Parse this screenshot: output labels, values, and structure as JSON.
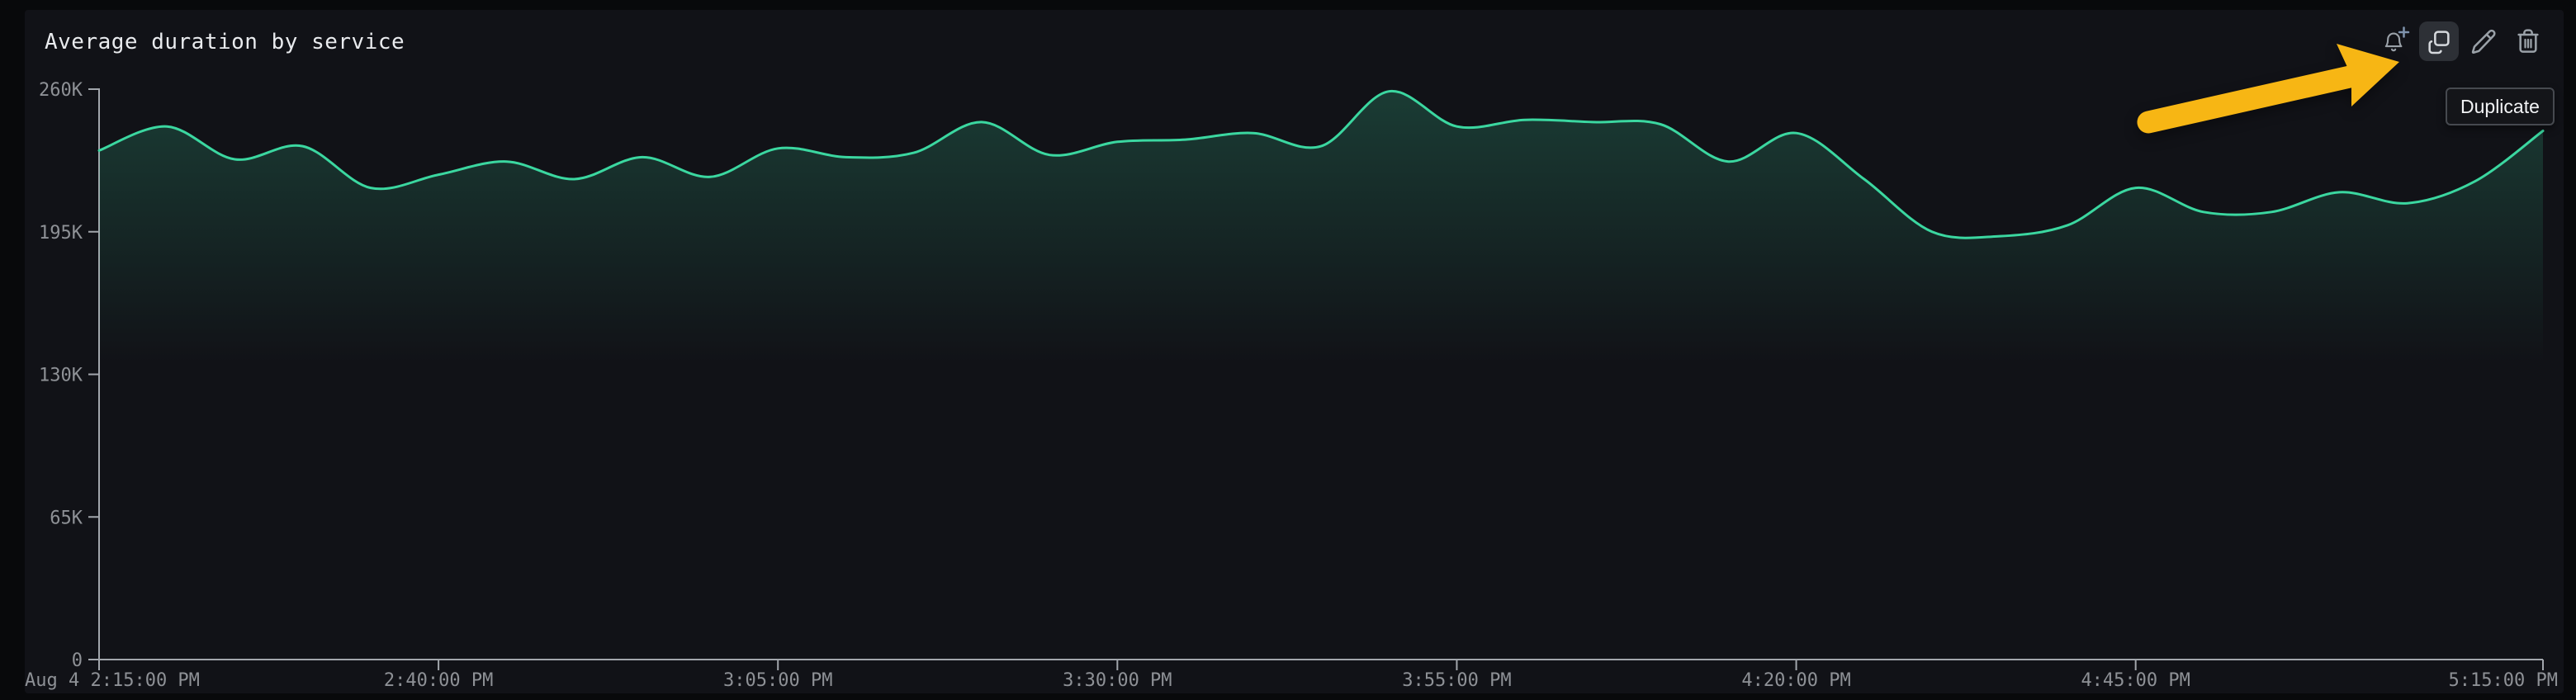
{
  "panel": {
    "title": "Average duration by service"
  },
  "toolbar": {
    "tooltip": "Duplicate",
    "buttons": [
      {
        "id": "alert",
        "icon": "bell-plus-icon"
      },
      {
        "id": "duplicate",
        "icon": "duplicate-icon",
        "state": "hovered"
      },
      {
        "id": "edit",
        "icon": "pencil-icon"
      },
      {
        "id": "delete",
        "icon": "trash-icon"
      }
    ]
  },
  "annotation": {
    "shape": "arrow",
    "color": "#f7b614",
    "points_to": "duplicate-button"
  },
  "colors": {
    "background": "#08090b",
    "panel": "#111217",
    "line": "#3bd7a0",
    "axis": "#a2a6ac",
    "tick_label": "#8e9196"
  },
  "chart_data": {
    "type": "line",
    "title": "Average duration by service",
    "xlabel": "",
    "ylabel": "",
    "grid": false,
    "legend": false,
    "ylim": [
      0,
      260000
    ],
    "yticks": [
      {
        "label": "0",
        "value": 0
      },
      {
        "label": "65K",
        "value": 65000
      },
      {
        "label": "130K",
        "value": 130000
      },
      {
        "label": "195K",
        "value": 195000
      },
      {
        "label": "260K",
        "value": 260000
      }
    ],
    "span_minutes": 180,
    "sample_interval_minutes": 5,
    "xticks": [
      {
        "label": "Aug 4 2:15:00 PM",
        "minutes": 0,
        "align": "start"
      },
      {
        "label": "2:40:00 PM",
        "minutes": 25,
        "align": "middle"
      },
      {
        "label": "3:05:00 PM",
        "minutes": 50,
        "align": "middle"
      },
      {
        "label": "3:30:00 PM",
        "minutes": 75,
        "align": "middle"
      },
      {
        "label": "3:55:00 PM",
        "minutes": 100,
        "align": "middle"
      },
      {
        "label": "4:20:00 PM",
        "minutes": 125,
        "align": "middle"
      },
      {
        "label": "4:45:00 PM",
        "minutes": 150,
        "align": "middle"
      },
      {
        "label": "5:15:00 PM",
        "minutes": 180,
        "align": "end"
      }
    ],
    "series": [
      {
        "name": "Average duration",
        "color": "#3bd7a0",
        "start_time": "Aug 4 2:15:00 PM",
        "values": [
          232000,
          243000,
          228000,
          234000,
          215000,
          221000,
          227000,
          219000,
          229000,
          220000,
          233000,
          229000,
          231000,
          245000,
          230000,
          236000,
          237000,
          240000,
          234000,
          259000,
          243000,
          246000,
          245000,
          244000,
          227000,
          240000,
          219000,
          195000,
          193000,
          198000,
          215000,
          204000,
          204000,
          213000,
          208000,
          218000,
          241000
        ]
      }
    ]
  }
}
